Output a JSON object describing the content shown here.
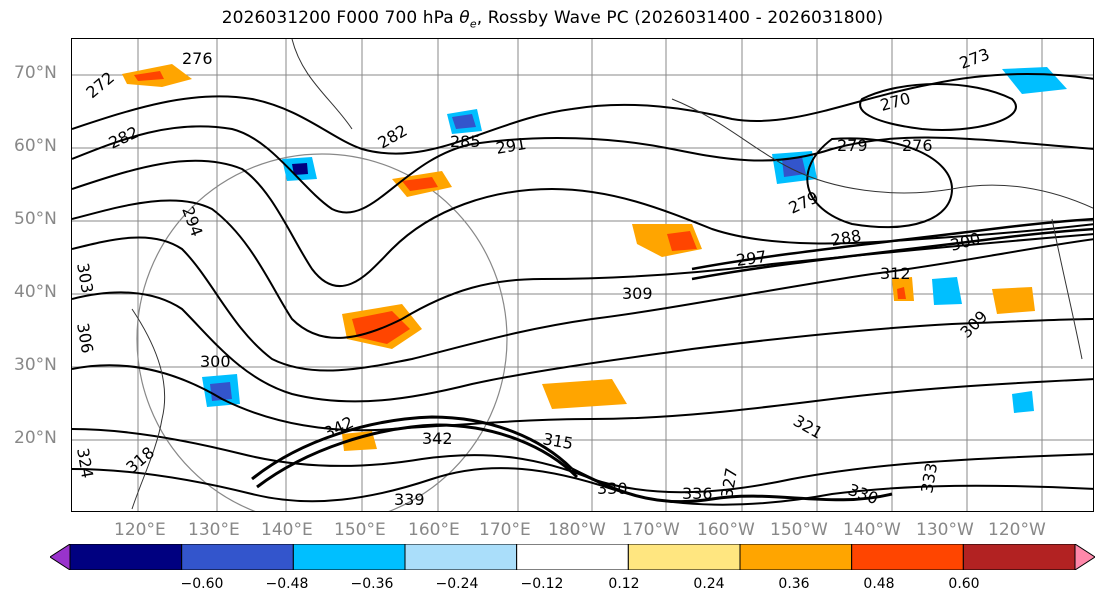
{
  "title": {
    "prefix": "2026031200 F000 700 hPa ",
    "symbol": "θ",
    "symbol_sub": "e",
    "suffix": ", Rossby Wave PC (2026031400 - 2026031800)"
  },
  "latitude_labels": [
    "70°N",
    "60°N",
    "50°N",
    "40°N",
    "30°N",
    "20°N"
  ],
  "longitude_labels": [
    "120°E",
    "130°E",
    "140°E",
    "150°E",
    "160°E",
    "170°E",
    "180°W",
    "170°W",
    "160°W",
    "150°W",
    "140°W",
    "130°W",
    "120°W"
  ],
  "contour_labels": [
    "276",
    "273",
    "272",
    "282",
    "282",
    "285",
    "291",
    "270",
    "279",
    "276",
    "279",
    "288",
    "297",
    "300",
    "312",
    "309",
    "294",
    "309",
    "303",
    "306",
    "300",
    "315",
    "324",
    "342",
    "342",
    "339",
    "336",
    "330",
    "330",
    "333",
    "327",
    "321",
    "318"
  ],
  "colorbar": {
    "ticks": [
      "−0.60",
      "−0.48",
      "−0.36",
      "−0.24",
      "−0.12",
      "0.12",
      "0.24",
      "0.36",
      "0.48",
      "0.60"
    ],
    "colors": [
      "#9933cc",
      "#000080",
      "#3355cc",
      "#00bfff",
      "#aadefa",
      "#ffffff",
      "#ffe680",
      "#ffa500",
      "#ff4500",
      "#b22222",
      "#ff88aa"
    ]
  },
  "field_colors": {
    "contour": "#000000",
    "grid": "#888888",
    "coast": "#333333"
  }
}
